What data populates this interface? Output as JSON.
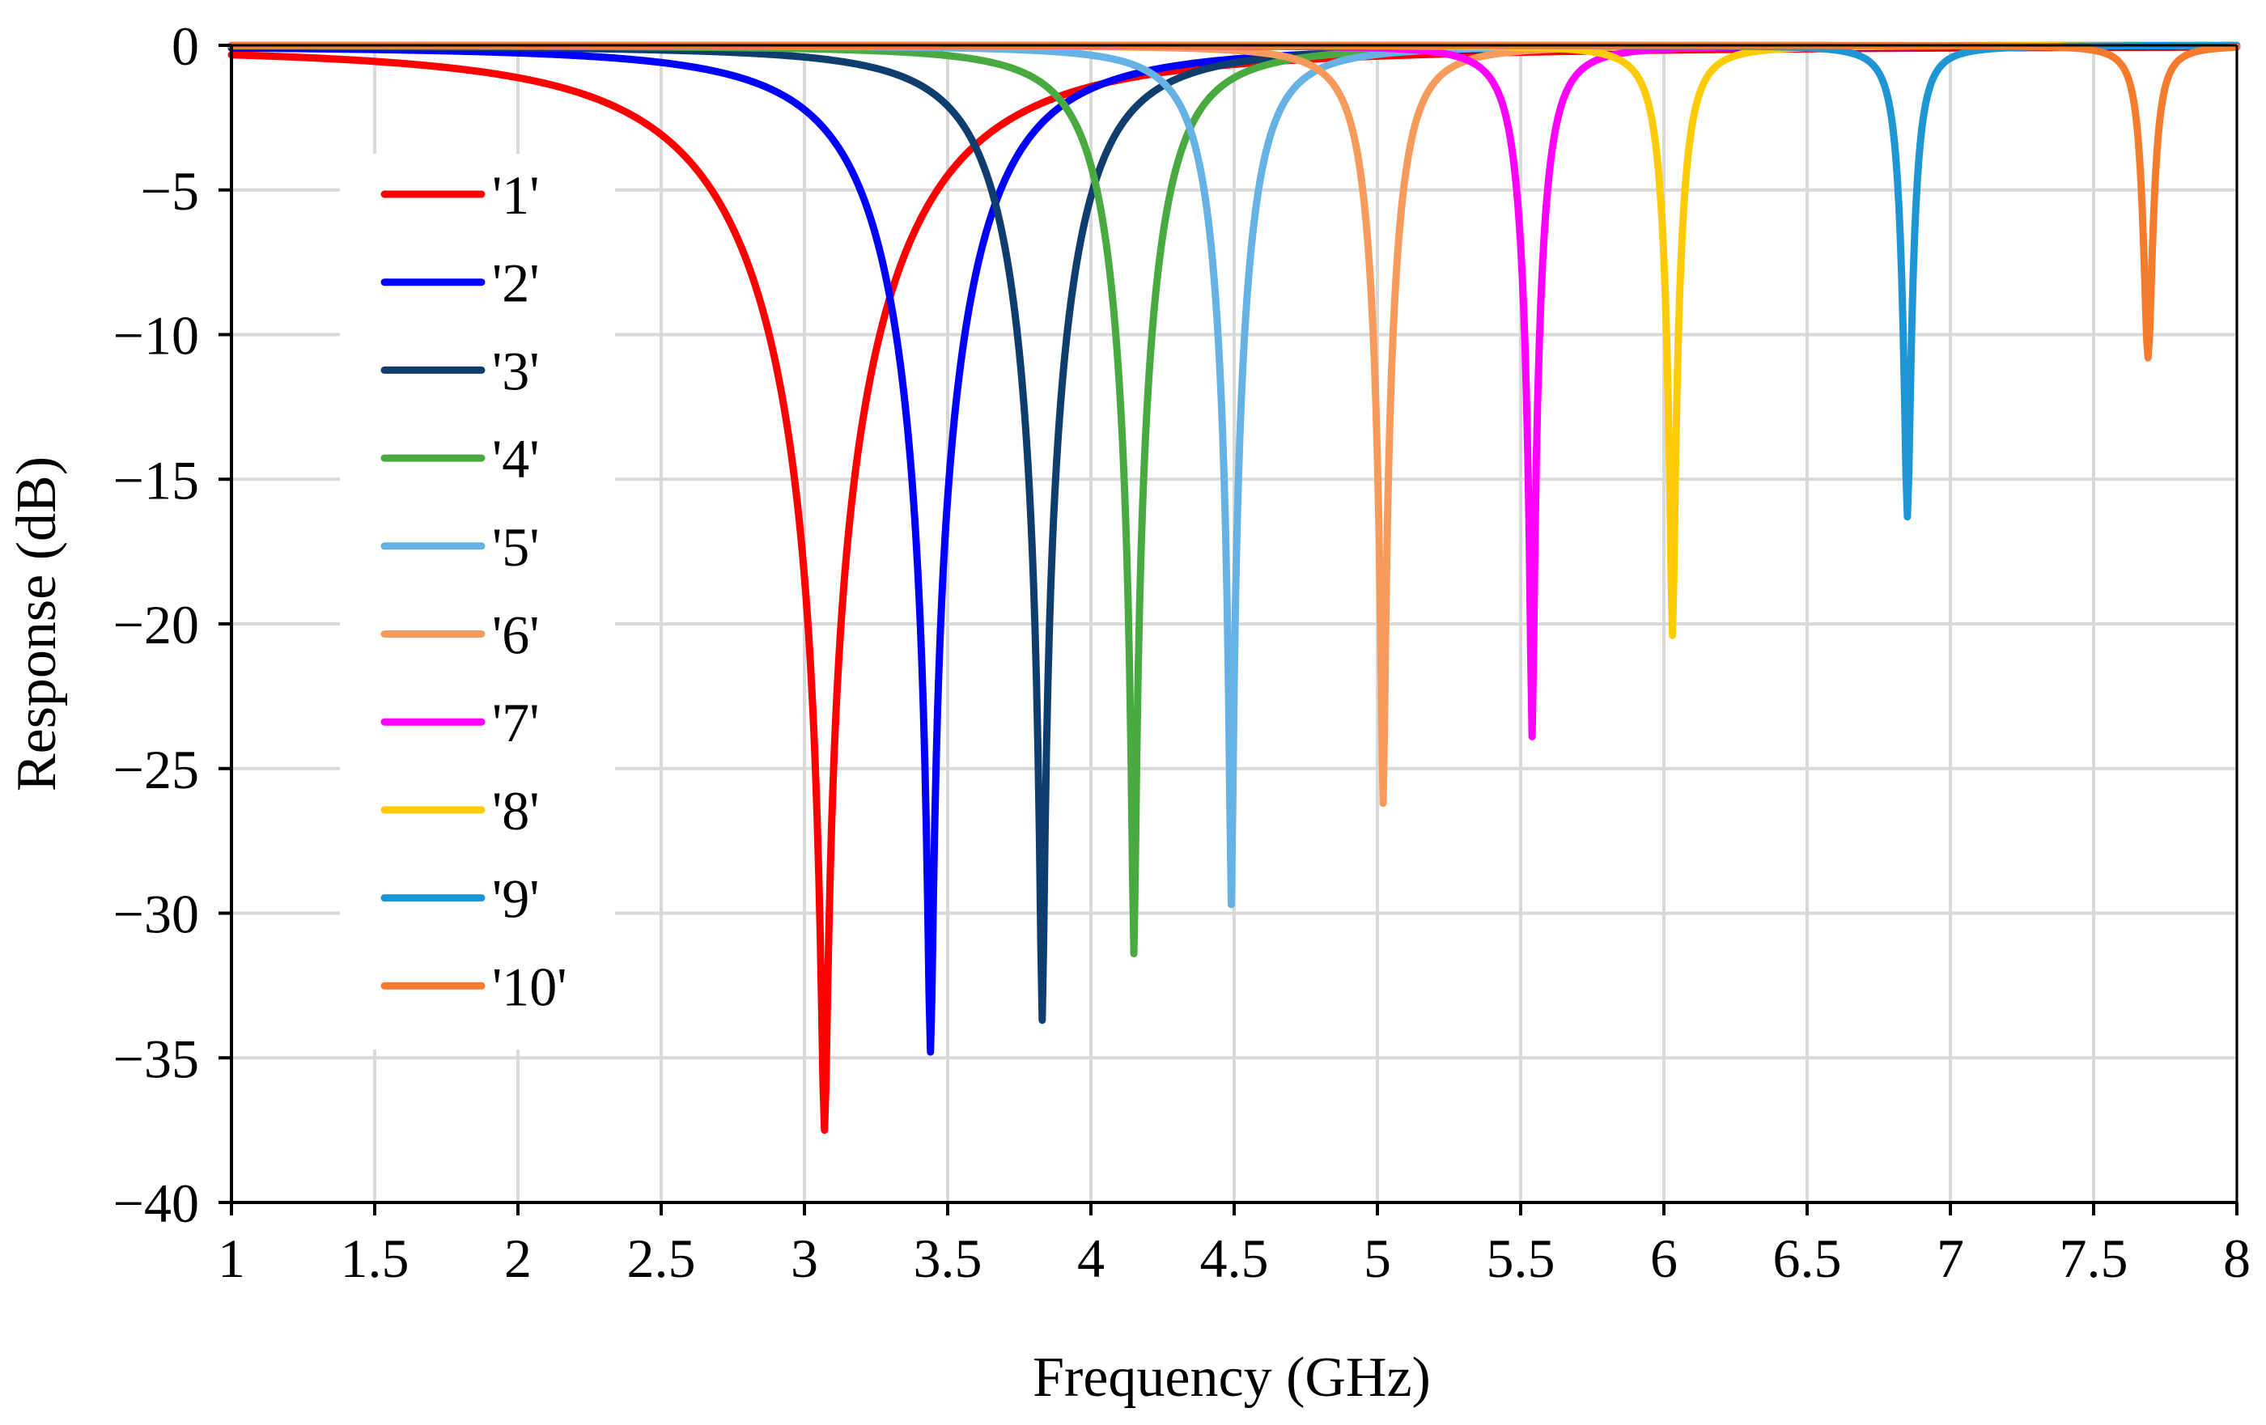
{
  "chart_data": {
    "type": "line",
    "title": "",
    "xlabel": "Frequency (GHz)",
    "ylabel": "Response (dB)",
    "xlim": [
      1,
      8
    ],
    "ylim": [
      -40,
      0
    ],
    "xticks": [
      1,
      1.5,
      2,
      2.5,
      3,
      3.5,
      4,
      4.5,
      5,
      5.5,
      6,
      6.5,
      7,
      7.5,
      8
    ],
    "xtick_labels": [
      "1",
      "1.5",
      "2",
      "2.5",
      "3",
      "3.5",
      "4",
      "4.5",
      "5",
      "5.5",
      "6",
      "6.5",
      "7",
      "7.5",
      "8"
    ],
    "yticks": [
      0,
      -5,
      -10,
      -15,
      -20,
      -25,
      -30,
      -35,
      -40
    ],
    "ytick_labels": [
      "0",
      "−5",
      "−10",
      "−15",
      "−20",
      "−25",
      "−30",
      "−35",
      "−40"
    ],
    "grid": true,
    "legend_position": "left",
    "series": [
      {
        "name": "'1'",
        "color": "#ff0000",
        "center": 3.07,
        "min_db": -37.5,
        "halfwidth": 0.58
      },
      {
        "name": "'2'",
        "color": "#0000ff",
        "center": 3.44,
        "min_db": -34.8,
        "halfwidth": 0.36
      },
      {
        "name": "'3'",
        "color": "#0f3e6e",
        "center": 3.83,
        "min_db": -33.7,
        "halfwidth": 0.26
      },
      {
        "name": "'4'",
        "color": "#4aaa42",
        "center": 4.15,
        "min_db": -31.4,
        "halfwidth": 0.19
      },
      {
        "name": "'5'",
        "color": "#66b2e5",
        "center": 4.49,
        "min_db": -29.7,
        "halfwidth": 0.14
      },
      {
        "name": "'6'",
        "color": "#f79b5c",
        "center": 5.02,
        "min_db": -26.2,
        "halfwidth": 0.105
      },
      {
        "name": "'7'",
        "color": "#ff00ff",
        "center": 5.54,
        "min_db": -23.9,
        "halfwidth": 0.08
      },
      {
        "name": "'8'",
        "color": "#ffcb06",
        "center": 6.03,
        "min_db": -20.4,
        "halfwidth": 0.065
      },
      {
        "name": "'9'",
        "color": "#1f96d4",
        "center": 6.85,
        "min_db": -16.3,
        "halfwidth": 0.05
      },
      {
        "name": "'10'",
        "color": "#f47c2c",
        "center": 7.69,
        "min_db": -10.8,
        "halfwidth": 0.04
      }
    ]
  }
}
